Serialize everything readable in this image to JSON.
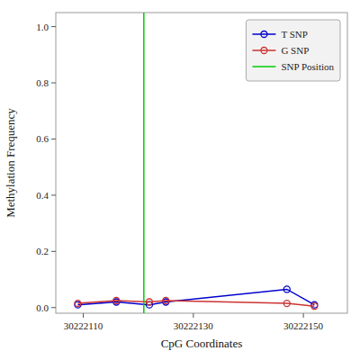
{
  "chart_data": {
    "type": "line",
    "xlabel": "CpG Coordinates",
    "ylabel": "Methylation Frequency",
    "x": [
      30222109,
      30222116,
      30222122,
      30222125,
      30222147,
      30222152
    ],
    "series": [
      {
        "name": "T SNP",
        "color": "#0000cc",
        "marker": "circle",
        "values": [
          0.01,
          0.02,
          0.01,
          0.02,
          0.065,
          0.01
        ]
      },
      {
        "name": "G SNP",
        "color": "#cc3333",
        "marker": "circle",
        "values": [
          0.015,
          0.025,
          0.02,
          0.025,
          0.015,
          0.005
        ]
      },
      {
        "name": "SNP Position",
        "type": "vline",
        "color": "#00cc00",
        "x": 30222121
      }
    ],
    "xlim": [
      30222105,
      30222158
    ],
    "ylim": [
      -0.02,
      1.05
    ],
    "xticks": [
      30222110,
      30222130,
      30222150
    ],
    "yticks": [
      {
        "value": 0,
        "label": "0.0"
      },
      0.2,
      0.4,
      0.6,
      0.8,
      {
        "value": 1,
        "label": "1.0"
      }
    ],
    "grid": false,
    "legend": "upper right"
  }
}
